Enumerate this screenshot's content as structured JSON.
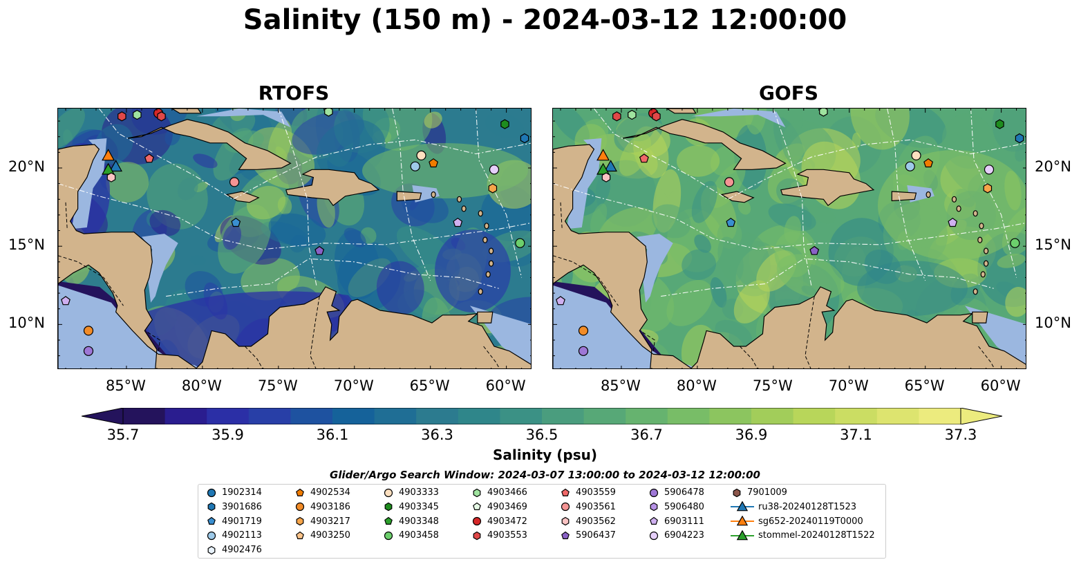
{
  "title": "Salinity (150 m) - 2024-03-12 12:00:00",
  "panels": [
    {
      "title": "RTOFS",
      "model": "rtofs"
    },
    {
      "title": "GOFS",
      "model": "gofs"
    }
  ],
  "map": {
    "lon_range": [
      -89.5,
      -58.3
    ],
    "lat_range": [
      7.1,
      23.8
    ],
    "lon_ticks": [
      "85°W",
      "80°W",
      "75°W",
      "70°W",
      "65°W",
      "60°W"
    ],
    "lon_tick_values": [
      -85,
      -80,
      -75,
      -70,
      -65,
      -60
    ],
    "lat_ticks": [
      "20°N",
      "15°N",
      "10°N"
    ],
    "lat_tick_values": [
      20,
      15,
      10
    ],
    "land_color": "#d2b48c",
    "shelf_color": "#9bb7e0"
  },
  "colorbar": {
    "label": "Salinity (psu)",
    "ticks": [
      "35.7",
      "35.9",
      "36.1",
      "36.3",
      "36.5",
      "36.7",
      "36.9",
      "37.1",
      "37.3"
    ],
    "min": 35.7,
    "max": 37.3,
    "colors": [
      "#24135c",
      "#2a1d8f",
      "#2b2fa6",
      "#283fa7",
      "#1e52a0",
      "#15629a",
      "#1f6e95",
      "#2c7b8f",
      "#2f868a",
      "#3b9185",
      "#4a9d7e",
      "#57a877",
      "#66b36f",
      "#78bd67",
      "#8cc55f",
      "#a2cd5a",
      "#b8d65a",
      "#cbdd63",
      "#dde46f",
      "#eceb7e"
    ]
  },
  "search_window": "Glider/Argo Search Window: 2024-03-07 13:00:00 to 2024-03-12 12:00:00",
  "legend": [
    {
      "label": "1902314",
      "marker": "circle",
      "color": "#1f77b4"
    },
    {
      "label": "3901686",
      "marker": "hexagon",
      "color": "#1f77b4"
    },
    {
      "label": "4901719",
      "marker": "pentagon",
      "color": "#3a8fd0"
    },
    {
      "label": "4902113",
      "marker": "circle",
      "color": "#9ecae9"
    },
    {
      "label": "4902476",
      "marker": "hexagon",
      "color": "#e8f2fb"
    },
    {
      "label": "4902534",
      "marker": "pentagon",
      "color": "#f07c00"
    },
    {
      "label": "4903186",
      "marker": "circle",
      "color": "#f28c28"
    },
    {
      "label": "4903217",
      "marker": "hexagon",
      "color": "#f7a54a"
    },
    {
      "label": "4903250",
      "marker": "pentagon",
      "color": "#fcc48a"
    },
    {
      "label": "4903333",
      "marker": "circle",
      "color": "#fde0c0"
    },
    {
      "label": "4903345",
      "marker": "hexagon",
      "color": "#1e8c1e"
    },
    {
      "label": "4903348",
      "marker": "pentagon",
      "color": "#2ca02c"
    },
    {
      "label": "4903458",
      "marker": "circle",
      "color": "#6ccf6c"
    },
    {
      "label": "4903466",
      "marker": "hexagon",
      "color": "#9fe39f"
    },
    {
      "label": "4903469",
      "marker": "pentagon",
      "color": "#e6f9e6"
    },
    {
      "label": "4903472",
      "marker": "circle",
      "color": "#d62728"
    },
    {
      "label": "4903553",
      "marker": "hexagon",
      "color": "#e04848"
    },
    {
      "label": "4903559",
      "marker": "pentagon",
      "color": "#f06868"
    },
    {
      "label": "4903561",
      "marker": "circle",
      "color": "#f49494"
    },
    {
      "label": "4903562",
      "marker": "hexagon",
      "color": "#fac3c3"
    },
    {
      "label": "5906437",
      "marker": "pentagon",
      "color": "#8a62c6"
    },
    {
      "label": "5906478",
      "marker": "circle",
      "color": "#9e77d6"
    },
    {
      "label": "5906480",
      "marker": "hexagon",
      "color": "#b792e6"
    },
    {
      "label": "6903111",
      "marker": "pentagon",
      "color": "#cfb0f0"
    },
    {
      "label": "6904223",
      "marker": "circle",
      "color": "#e6cffa"
    },
    {
      "label": "7901009",
      "marker": "hexagon",
      "color": "#8c564b"
    },
    {
      "label": "ru38-20240128T1523",
      "marker": "triangle-line",
      "color": "#1f77b4"
    },
    {
      "label": "sg652-20240119T0000",
      "marker": "triangle-line",
      "color": "#ff7f0e"
    },
    {
      "label": "stommel-20240128T1522",
      "marker": "triangle-line",
      "color": "#2ca02c"
    }
  ],
  "floats": [
    {
      "id": "4903553",
      "lon": -85.3,
      "lat": 23.3
    },
    {
      "id": "4903466",
      "lon": -84.3,
      "lat": 23.4
    },
    {
      "id": "4903472",
      "lon": -82.9,
      "lat": 23.5
    },
    {
      "id": "4903553",
      "lon": -82.7,
      "lat": 23.3
    },
    {
      "id": "4903466",
      "lon": -71.7,
      "lat": 23.6
    },
    {
      "id": "4903345",
      "lon": -60.1,
      "lat": 22.8
    },
    {
      "id": "3901686",
      "lon": -58.8,
      "lat": 21.9
    },
    {
      "id": "4903559",
      "lon": -83.5,
      "lat": 20.6
    },
    {
      "id": "sg652-20240119T0000",
      "lon": -86.2,
      "lat": 20.8
    },
    {
      "id": "ru38-20240128T1523",
      "lon": -85.7,
      "lat": 20.1
    },
    {
      "id": "stommel-20240128T1522",
      "lon": -86.2,
      "lat": 19.9
    },
    {
      "id": "4903562",
      "lon": -86.0,
      "lat": 19.4
    },
    {
      "id": "4903561",
      "lon": -77.9,
      "lat": 19.1
    },
    {
      "id": "4903333",
      "lon": -65.6,
      "lat": 20.8
    },
    {
      "id": "4902113",
      "lon": -66.0,
      "lat": 20.1
    },
    {
      "id": "4902534",
      "lon": -64.8,
      "lat": 20.3
    },
    {
      "id": "6904223",
      "lon": -60.8,
      "lat": 19.9
    },
    {
      "id": "4903217",
      "lon": -60.9,
      "lat": 18.7
    },
    {
      "id": "4901719",
      "lon": -77.8,
      "lat": 16.5
    },
    {
      "id": "6903111",
      "lon": -63.2,
      "lat": 16.5
    },
    {
      "id": "5906437",
      "lon": -72.3,
      "lat": 14.7
    },
    {
      "id": "4903458",
      "lon": -59.1,
      "lat": 15.2
    },
    {
      "id": "6903111",
      "lon": -89.0,
      "lat": 11.5
    },
    {
      "id": "4903186",
      "lon": -87.5,
      "lat": 9.6
    },
    {
      "id": "5906478",
      "lon": -87.5,
      "lat": 8.3
    }
  ]
}
